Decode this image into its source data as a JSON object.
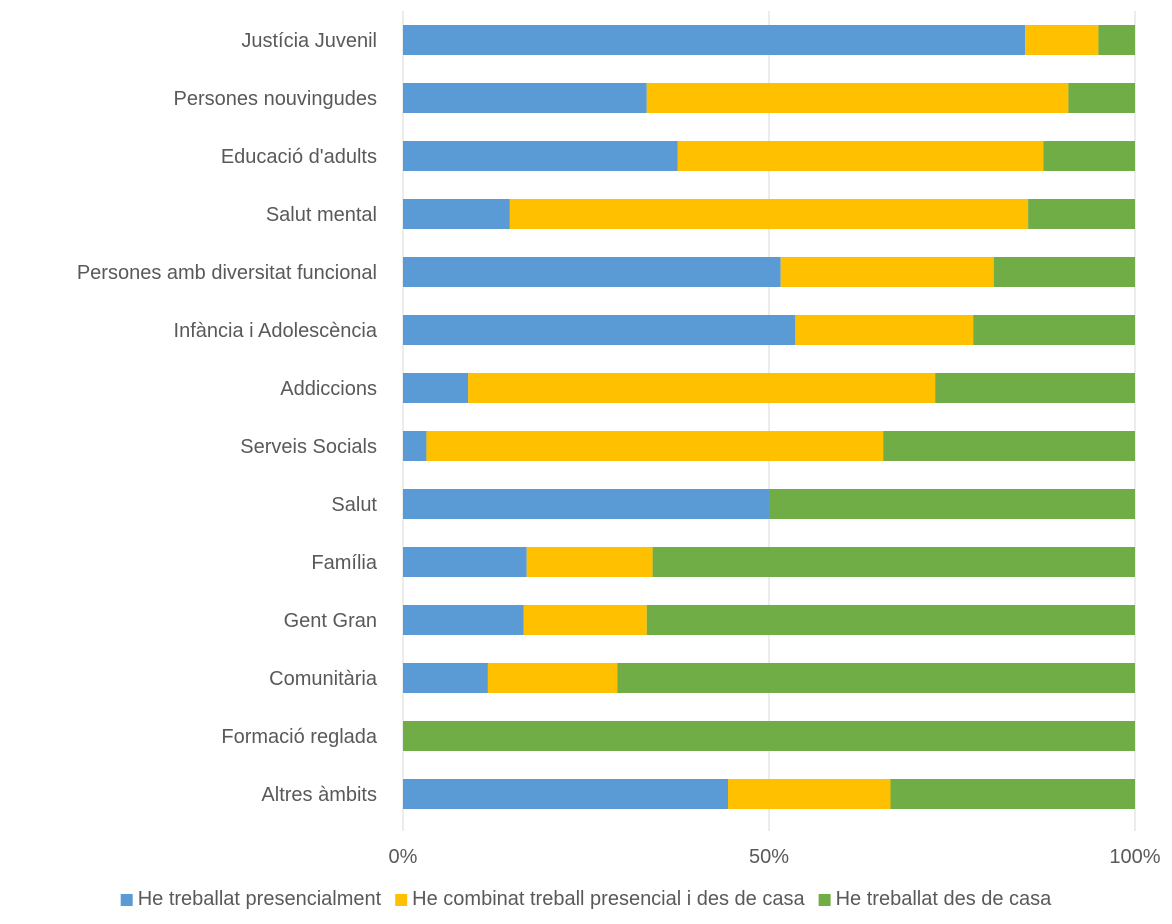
{
  "chart_data": {
    "type": "bar",
    "orientation": "horizontal",
    "stacked": "percent",
    "title": "",
    "xlabel": "",
    "ylabel": "",
    "categories": [
      "Justícia Juvenil",
      "Persones nouvingudes",
      "Educació d'adults",
      "Salut mental",
      "Persones amb diversitat funcional",
      "Infància i Adolescència",
      "Addiccions",
      "Serveis Socials",
      "Salut",
      "Família",
      "Gent Gran",
      "Comunitària",
      "Formació reglada",
      "Altres àmbits"
    ],
    "series": [
      {
        "name": "He treballat presencialment",
        "color": "#5B9BD5",
        "values": [
          85.0,
          33.3,
          37.5,
          14.6,
          51.6,
          53.6,
          8.9,
          3.2,
          50.0,
          16.9,
          16.5,
          11.6,
          0.0,
          44.4
        ]
      },
      {
        "name": "He combinat treball presencial i des de casa",
        "color": "#FFC000",
        "values": [
          10.0,
          57.6,
          50.0,
          70.8,
          29.1,
          24.3,
          63.8,
          62.4,
          0.0,
          17.2,
          16.8,
          17.7,
          0.0,
          22.2
        ]
      },
      {
        "name": "He treballat des de casa",
        "color": "#70AD47",
        "values": [
          5.0,
          9.1,
          12.5,
          14.6,
          19.3,
          22.1,
          27.3,
          34.4,
          50.0,
          65.9,
          66.7,
          70.7,
          100.0,
          33.4
        ]
      }
    ],
    "x_ticks": [
      "0%",
      "50%",
      "100%"
    ],
    "xlim": [
      0,
      100
    ],
    "grid": "vertical",
    "legend_position": "bottom"
  }
}
